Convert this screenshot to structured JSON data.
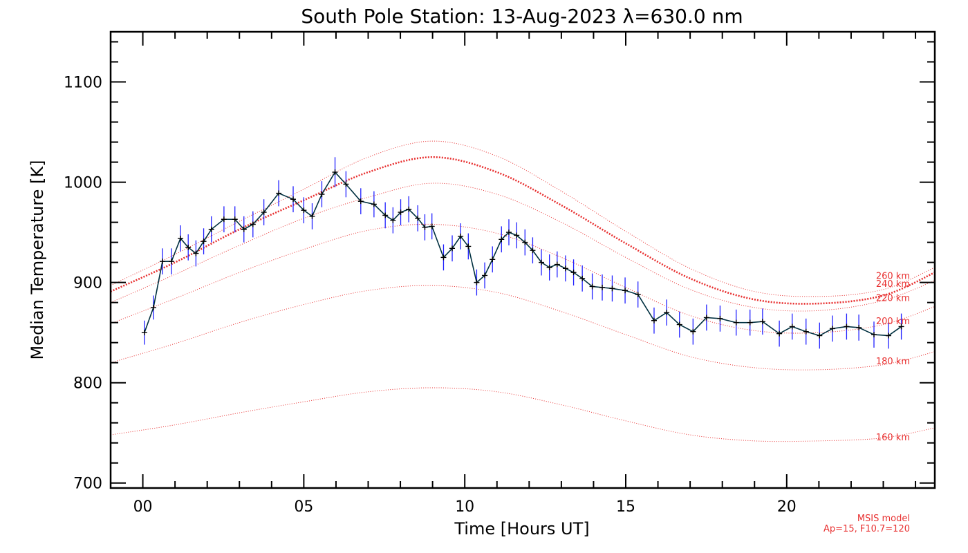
{
  "chart_data": {
    "type": "line",
    "title": "South Pole Station: 13-Aug-2023 λ=630.0 nm",
    "xlabel": "Time [Hours UT]",
    "ylabel": "Median Temperature [K]",
    "xlim": [
      -1,
      24.6
    ],
    "ylim": [
      695,
      1150
    ],
    "x_ticks": [
      0,
      5,
      10,
      15,
      20
    ],
    "x_tick_labels": [
      "00",
      "05",
      "10",
      "15",
      "20"
    ],
    "y_ticks": [
      700,
      800,
      900,
      1000,
      1100
    ],
    "y_tick_labels": [
      "700",
      "800",
      "900",
      "1000",
      "1100"
    ],
    "grid": false,
    "colors": {
      "data_line": "#003040",
      "error_bar": "#2020ff",
      "marker": "#000000",
      "model": "#e83030"
    },
    "measurements": {
      "x": [
        0.05,
        0.33,
        0.61,
        0.89,
        1.17,
        1.41,
        1.65,
        1.89,
        2.13,
        2.52,
        2.86,
        3.14,
        3.42,
        3.76,
        4.22,
        4.67,
        5.0,
        5.26,
        5.56,
        5.97,
        6.31,
        6.77,
        7.18,
        7.53,
        7.77,
        8.01,
        8.26,
        8.54,
        8.76,
        8.98,
        9.34,
        9.61,
        9.87,
        10.11,
        10.37,
        10.62,
        10.86,
        11.14,
        11.37,
        11.61,
        11.87,
        12.11,
        12.38,
        12.63,
        12.87,
        13.13,
        13.38,
        13.65,
        13.96,
        14.27,
        14.58,
        14.98,
        15.38,
        15.88,
        16.27,
        16.67,
        17.09,
        17.51,
        17.93,
        18.43,
        18.86,
        19.25,
        19.77,
        20.17,
        20.6,
        21.02,
        21.42,
        21.86,
        22.24,
        22.71,
        23.16,
        23.56
      ],
      "y": [
        850,
        875,
        921,
        921,
        944,
        935,
        929,
        941,
        953,
        963,
        963,
        953,
        958,
        970,
        989,
        983,
        972,
        966,
        988,
        1010,
        998,
        981,
        978,
        967,
        962,
        970,
        973,
        964,
        955,
        956,
        925,
        934,
        946,
        936,
        900,
        907,
        923,
        943,
        950,
        947,
        940,
        932,
        920,
        915,
        918,
        914,
        910,
        904,
        896,
        895,
        894,
        892,
        888,
        862,
        870,
        858,
        851,
        865,
        864,
        860,
        860,
        861,
        849,
        856,
        851,
        847,
        854,
        856,
        855,
        848,
        847,
        856
      ],
      "error": [
        12,
        12,
        13,
        13,
        13,
        13,
        13,
        13,
        13,
        13,
        13,
        13,
        13,
        13,
        13,
        13,
        13,
        13,
        13,
        15,
        13,
        13,
        13,
        13,
        13,
        13,
        13,
        13,
        13,
        13,
        13,
        13,
        13,
        13,
        13,
        13,
        13,
        13,
        13,
        13,
        13,
        13,
        13,
        13,
        13,
        13,
        13,
        13,
        13,
        13,
        13,
        13,
        13,
        13,
        13,
        13,
        13,
        13,
        13,
        13,
        13,
        13,
        13,
        13,
        13,
        13,
        13,
        13,
        13,
        13,
        13,
        13
      ]
    },
    "model_curves": [
      {
        "name": "160 km",
        "x": [
          -1,
          1,
          3,
          5,
          7,
          9,
          11,
          13,
          15,
          17,
          19,
          21,
          23,
          24.6
        ],
        "y": [
          748,
          758,
          770,
          781,
          791,
          795,
          791,
          778,
          762,
          748,
          742,
          742,
          745,
          755
        ]
      },
      {
        "name": "180 km",
        "x": [
          -1,
          1,
          3,
          5,
          7,
          9,
          11,
          13,
          15,
          17,
          19,
          21,
          23,
          24.6
        ],
        "y": [
          820,
          839,
          860,
          878,
          892,
          897,
          890,
          871,
          848,
          826,
          815,
          813,
          818,
          831
        ]
      },
      {
        "name": "200 km",
        "x": [
          -1,
          1,
          3,
          5,
          7,
          9,
          11,
          13,
          15,
          17,
          19,
          21,
          23,
          24.6
        ],
        "y": [
          859,
          884,
          910,
          933,
          952,
          958,
          949,
          925,
          895,
          867,
          852,
          850,
          858,
          876
        ]
      },
      {
        "name": "220 km",
        "x": [
          -1,
          1,
          3,
          5,
          7,
          9,
          11,
          13,
          15,
          17,
          19,
          21,
          23,
          24.6
        ],
        "y": [
          880,
          908,
          937,
          964,
          985,
          999,
          988,
          960,
          925,
          893,
          875,
          872,
          882,
          902
        ],
        "dense": false
      },
      {
        "name": "240 km",
        "x": [
          -1,
          1,
          3,
          5,
          7,
          9,
          11,
          13,
          15,
          17,
          19,
          21,
          23,
          24.6
        ],
        "y": [
          891,
          920,
          953,
          982,
          1010,
          1025,
          1010,
          977,
          939,
          904,
          883,
          879,
          887,
          910
        ],
        "dense": true
      },
      {
        "name": "260 km",
        "x": [
          -1,
          1,
          3,
          5,
          7,
          9,
          11,
          13,
          15,
          17,
          19,
          21,
          23,
          24.6
        ],
        "y": [
          897,
          928,
          961,
          993,
          1025,
          1041,
          1026,
          991,
          951,
          914,
          891,
          886,
          893,
          915
        ]
      }
    ],
    "model_labels": [
      {
        "text": "260 km",
        "y": 907
      },
      {
        "text": "240 km",
        "y": 899
      },
      {
        "text": "220 km",
        "y": 885
      },
      {
        "text": "200 km",
        "y": 862
      },
      {
        "text": "180 km",
        "y": 822
      },
      {
        "text": "160 km",
        "y": 746
      }
    ],
    "note_lines": [
      "MSIS model",
      "Ap=15, F10.7=120"
    ]
  }
}
